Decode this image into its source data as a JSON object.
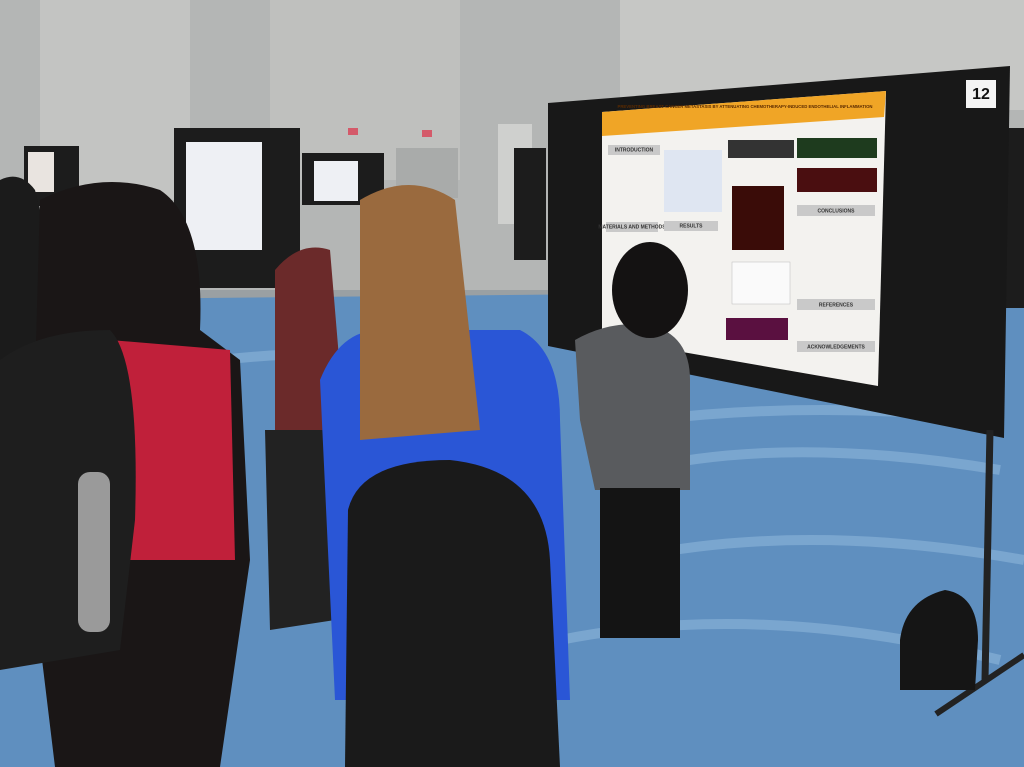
{
  "board_number": "12",
  "poster": {
    "title": "PREVENTING BREAST CANCER METASTASIS BY ATTENUATING CHEMOTHERAPY-INDUCED ENDOTHELIAL INFLAMMATION",
    "sections": [
      "INTRODUCTION",
      "MATERIALS AND METHODS",
      "RESULTS",
      "CONCLUSIONS",
      "REFERENCES",
      "ACKNOWLEDGEMENTS"
    ]
  }
}
